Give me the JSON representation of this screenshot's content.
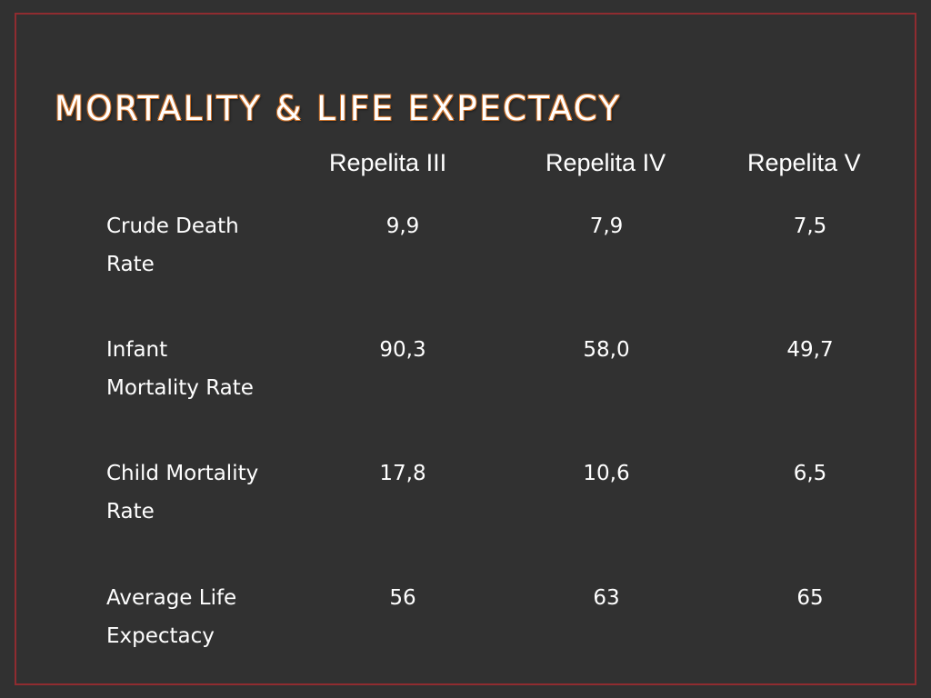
{
  "slide": {
    "title": "MORTALITY & LIFE EXPECTACY"
  },
  "table": {
    "columns": [
      "Repelita III",
      "Repelita IV",
      "Repelita V"
    ],
    "rows": [
      {
        "label_line1": "Crude Death",
        "label_line2": "Rate",
        "values": [
          "9,9",
          "7,9",
          "7,5"
        ]
      },
      {
        "label_line1": "Infant",
        "label_line2": "Mortality Rate",
        "values": [
          "90,3",
          "58,0",
          "49,7"
        ]
      },
      {
        "label_line1": "Child Mortality",
        "label_line2": "Rate",
        "values": [
          "17,8",
          "10,6",
          "6,5"
        ]
      },
      {
        "label_line1": "Average Life",
        "label_line2": "Expectacy",
        "values": [
          "56",
          "63",
          "65"
        ]
      }
    ]
  },
  "colors": {
    "background": "#313131",
    "frame": "#8f2c30",
    "title_outline": "#c9702a",
    "text": "#ffffff"
  }
}
